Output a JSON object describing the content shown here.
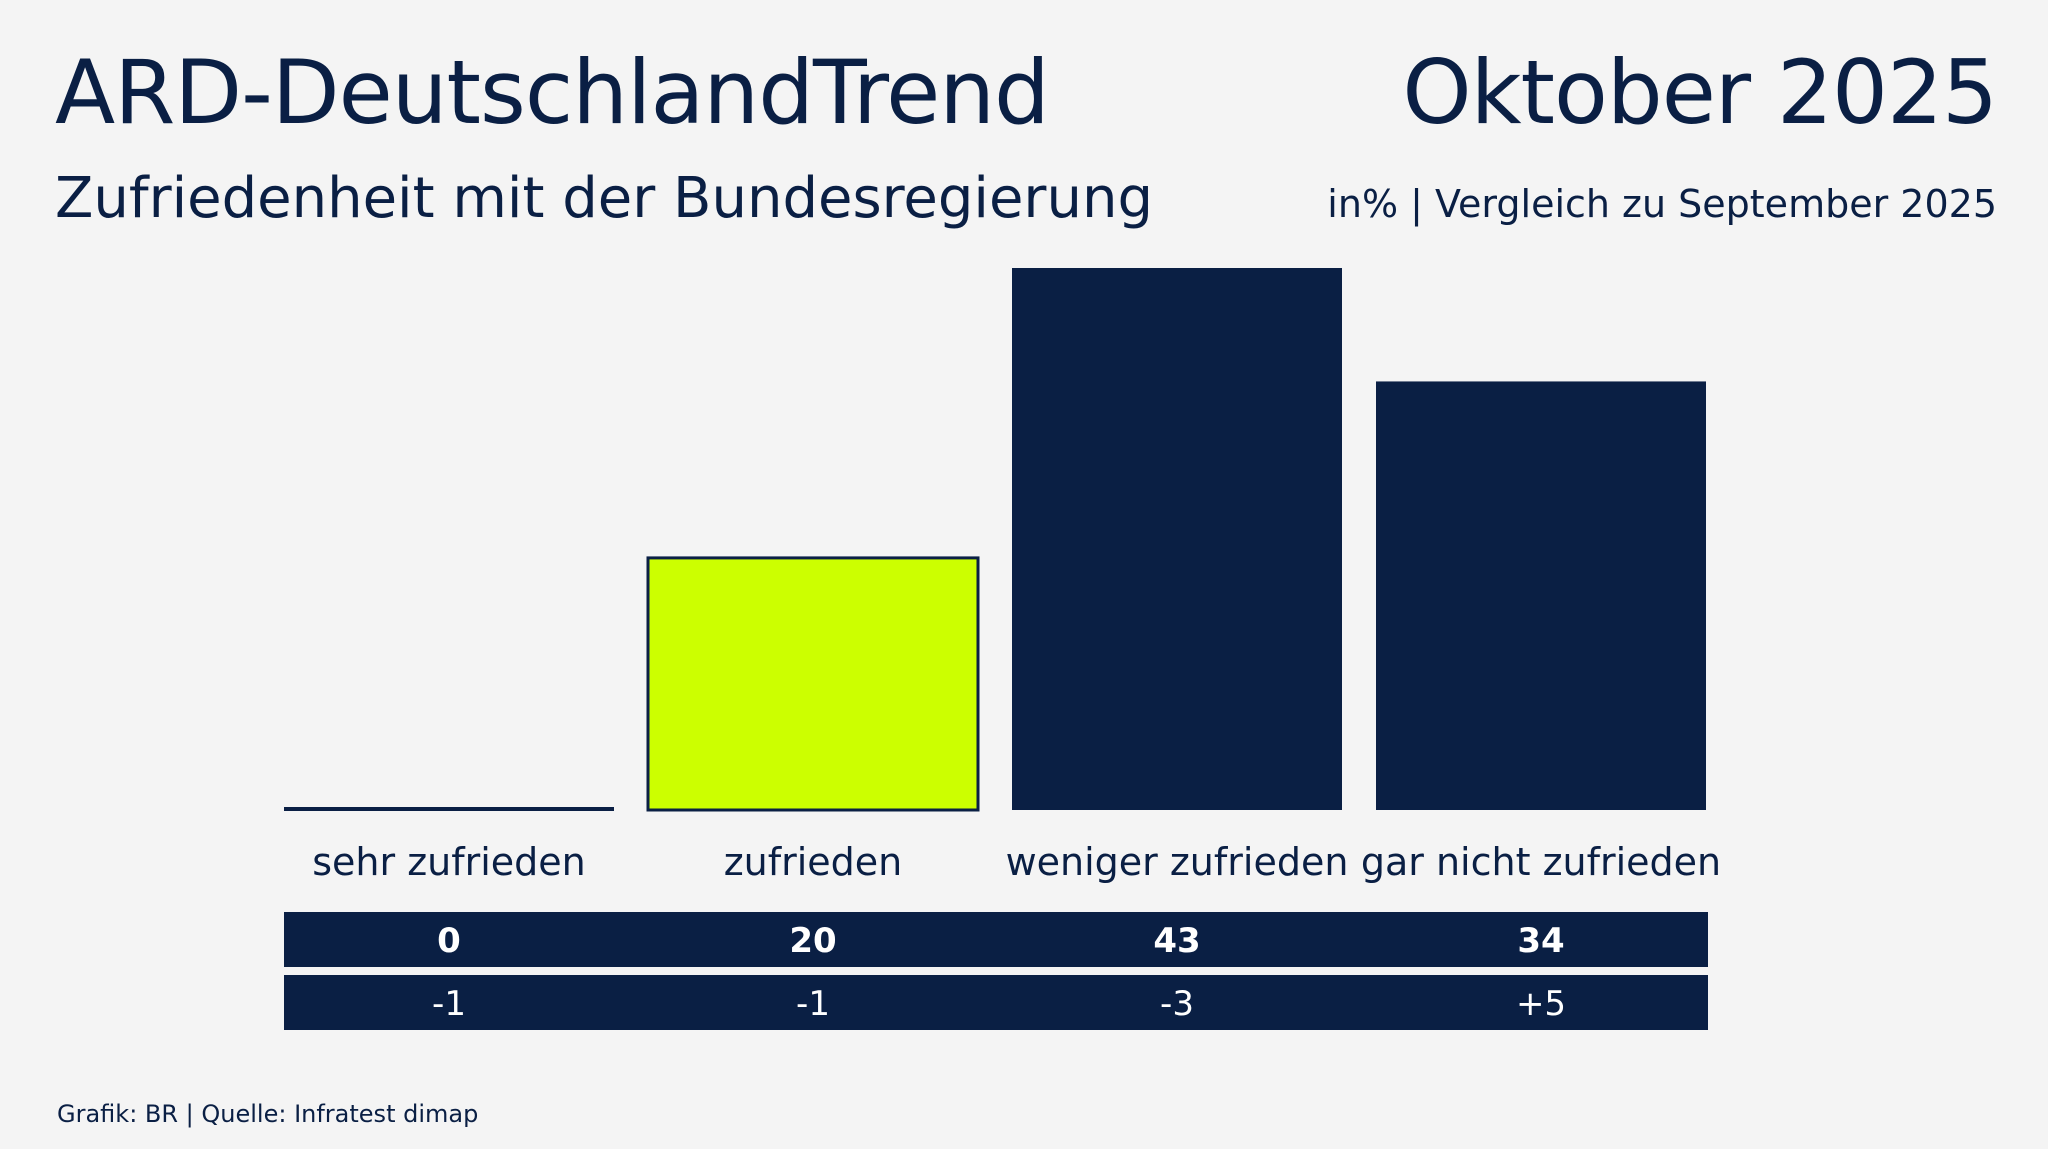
{
  "header": {
    "title": "ARD-DeutschlandTrend",
    "date": "Oktober 2025",
    "subtitle": "Zufriedenheit mit der Bundesregierung",
    "note": "in% | Vergleich zu September 2025"
  },
  "footer": {
    "source": "Grafik: BR | Quelle: Infratest dimap"
  },
  "colors": {
    "navy": "#0a1f44",
    "highlight": "#ccff00",
    "background": "#f4f4f4",
    "table_text": "#ffffff"
  },
  "chart_data": {
    "type": "bar",
    "title": "Zufriedenheit mit der Bundesregierung",
    "unit": "%",
    "categories": [
      "sehr zufrieden",
      "zufrieden",
      "weniger zufrieden",
      "gar nicht zufrieden"
    ],
    "values": [
      0,
      20,
      43,
      34
    ],
    "value_labels": [
      "0",
      "20",
      "43",
      "34"
    ],
    "change_vs_previous": [
      -1,
      -1,
      -3,
      5
    ],
    "change_labels": [
      "-1",
      "-1",
      "-3",
      "+5"
    ],
    "comparison_label": "Vergleich zu September 2025",
    "highlighted_category": "zufrieden",
    "ylim": [
      0,
      43
    ],
    "grid": false,
    "legend": "none"
  }
}
